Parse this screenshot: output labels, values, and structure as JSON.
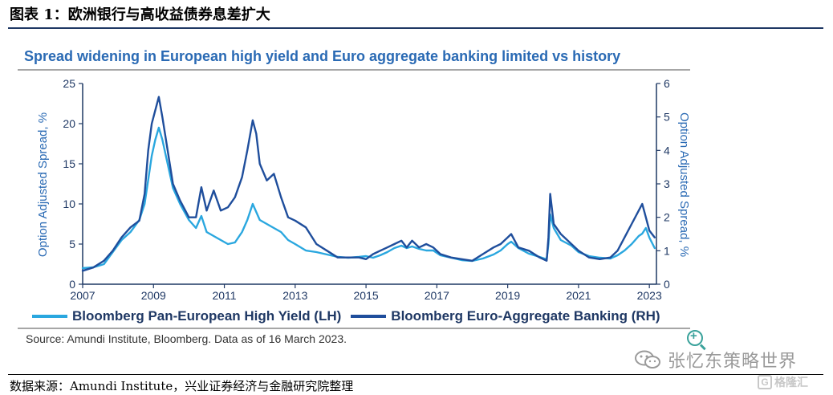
{
  "figure": {
    "title": "图表 1：欧洲银行与高收益债券息差扩大",
    "footer": "数据来源：Amundi Institute，兴业证券经济与金融研究院整理",
    "watermark": "张忆东策略世界",
    "badge": "格隆汇"
  },
  "chart_data": {
    "type": "line",
    "title": "Spread widening in European high yield and Euro aggregate banking limited vs history",
    "source": "Source: Amundi Institute, Bloomberg. Data as of 16 March 2023.",
    "ylabel_left": "Option Adjusted Spread, %",
    "ylabel_right": "Option Adjusted Spread, %",
    "xlim": [
      2007,
      2023.2
    ],
    "ylim_left": [
      0,
      25
    ],
    "ylim_right": [
      0,
      6
    ],
    "x_ticks": [
      "2007",
      "2009",
      "2011",
      "2013",
      "2015",
      "2017",
      "2019",
      "2021",
      "2023"
    ],
    "y_ticks_left": [
      "0",
      "5",
      "10",
      "15",
      "20",
      "25"
    ],
    "y_ticks_right": [
      "0",
      "1",
      "2",
      "3",
      "4",
      "5",
      "6"
    ],
    "grid": false,
    "legend_position": "bottom",
    "series": [
      {
        "name": "Bloomberg Pan-European High Yield (LH)",
        "axis": "left",
        "color": "#2aa7df",
        "x": [
          2007.0,
          2007.3,
          2007.6,
          2007.85,
          2008.1,
          2008.35,
          2008.6,
          2008.75,
          2008.85,
          2008.95,
          2009.05,
          2009.15,
          2009.25,
          2009.4,
          2009.55,
          2009.75,
          2010.0,
          2010.2,
          2010.35,
          2010.5,
          2010.7,
          2010.9,
          2011.1,
          2011.3,
          2011.5,
          2011.65,
          2011.8,
          2011.9,
          2012.0,
          2012.2,
          2012.4,
          2012.6,
          2012.8,
          2013.0,
          2013.3,
          2013.6,
          2013.9,
          2014.2,
          2014.5,
          2014.8,
          2015.0,
          2015.2,
          2015.4,
          2015.6,
          2015.8,
          2016.0,
          2016.15,
          2016.3,
          2016.5,
          2016.7,
          2016.9,
          2017.1,
          2017.4,
          2017.7,
          2018.0,
          2018.3,
          2018.6,
          2018.8,
          2019.0,
          2019.1,
          2019.3,
          2019.6,
          2019.9,
          2020.1,
          2020.15,
          2020.2,
          2020.3,
          2020.5,
          2020.8,
          2021.0,
          2021.3,
          2021.6,
          2021.9,
          2022.1,
          2022.3,
          2022.5,
          2022.7,
          2022.8,
          2022.9,
          2023.0,
          2023.15
        ],
        "y": [
          2.0,
          2.1,
          2.5,
          4.0,
          5.5,
          6.5,
          8.0,
          10.0,
          13.0,
          16.0,
          18.0,
          19.5,
          18.0,
          15.0,
          12.0,
          10.0,
          8.0,
          7.0,
          8.5,
          6.5,
          6.0,
          5.5,
          5.0,
          5.2,
          6.5,
          8.0,
          10.0,
          9.0,
          8.0,
          7.5,
          7.0,
          6.5,
          5.5,
          5.0,
          4.2,
          4.0,
          3.7,
          3.4,
          3.3,
          3.4,
          3.5,
          3.3,
          3.6,
          4.0,
          4.5,
          4.8,
          4.5,
          4.7,
          4.4,
          4.2,
          4.2,
          3.6,
          3.3,
          3.0,
          2.9,
          3.2,
          3.7,
          4.2,
          5.0,
          5.3,
          4.5,
          3.8,
          3.4,
          3.1,
          5.0,
          8.7,
          7.0,
          5.5,
          4.8,
          4.0,
          3.5,
          3.3,
          3.2,
          3.6,
          4.2,
          5.0,
          6.0,
          6.3,
          7.0,
          5.8,
          4.5
        ]
      },
      {
        "name": "Bloomberg Euro-Aggregate Banking (RH)",
        "axis": "right",
        "color": "#1f4e9c",
        "x": [
          2007.0,
          2007.3,
          2007.6,
          2007.85,
          2008.1,
          2008.35,
          2008.6,
          2008.75,
          2008.85,
          2008.95,
          2009.05,
          2009.15,
          2009.25,
          2009.4,
          2009.55,
          2009.75,
          2010.0,
          2010.2,
          2010.35,
          2010.5,
          2010.7,
          2010.9,
          2011.1,
          2011.3,
          2011.5,
          2011.65,
          2011.8,
          2011.9,
          2012.0,
          2012.2,
          2012.4,
          2012.6,
          2012.8,
          2013.0,
          2013.3,
          2013.6,
          2013.9,
          2014.2,
          2014.5,
          2014.8,
          2015.0,
          2015.2,
          2015.4,
          2015.6,
          2015.8,
          2016.0,
          2016.15,
          2016.3,
          2016.5,
          2016.7,
          2016.9,
          2017.1,
          2017.4,
          2017.7,
          2018.0,
          2018.3,
          2018.6,
          2018.8,
          2019.0,
          2019.1,
          2019.3,
          2019.6,
          2019.9,
          2020.1,
          2020.15,
          2020.2,
          2020.3,
          2020.5,
          2020.8,
          2021.0,
          2021.3,
          2021.6,
          2021.9,
          2022.1,
          2022.3,
          2022.5,
          2022.7,
          2022.8,
          2022.9,
          2023.0,
          2023.15
        ],
        "y": [
          0.4,
          0.5,
          0.7,
          1.0,
          1.4,
          1.7,
          1.9,
          2.7,
          4.0,
          4.8,
          5.2,
          5.6,
          5.0,
          4.0,
          3.0,
          2.5,
          2.0,
          2.0,
          2.9,
          2.2,
          2.8,
          2.2,
          2.3,
          2.6,
          3.2,
          4.0,
          4.9,
          4.5,
          3.6,
          3.1,
          3.3,
          2.6,
          2.0,
          1.9,
          1.7,
          1.2,
          1.0,
          0.8,
          0.8,
          0.8,
          0.75,
          0.9,
          1.0,
          1.1,
          1.2,
          1.3,
          1.1,
          1.3,
          1.1,
          1.2,
          1.1,
          0.9,
          0.8,
          0.75,
          0.7,
          0.9,
          1.1,
          1.2,
          1.4,
          1.5,
          1.1,
          1.0,
          0.8,
          0.7,
          1.4,
          2.7,
          1.8,
          1.5,
          1.2,
          1.0,
          0.8,
          0.75,
          0.8,
          1.0,
          1.4,
          1.8,
          2.2,
          2.4,
          2.0,
          1.6,
          1.4
        ]
      }
    ]
  }
}
